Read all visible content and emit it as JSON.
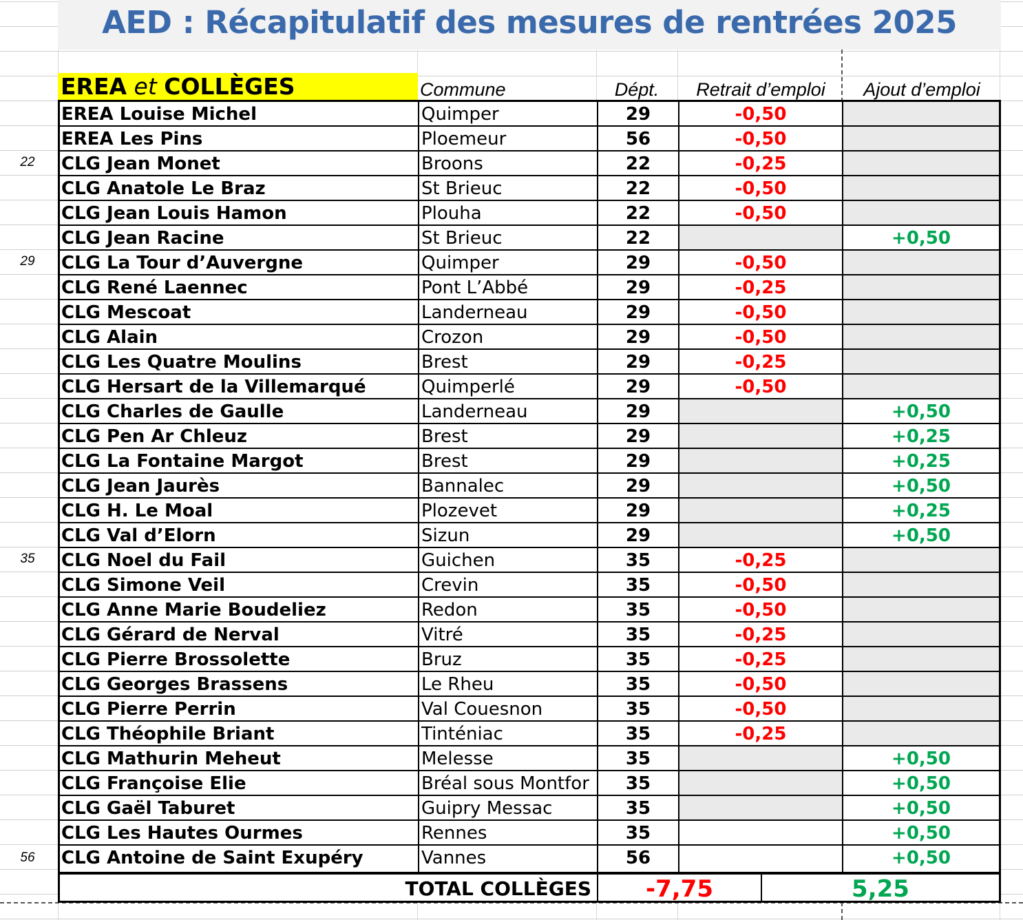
{
  "title": "AED : Récapitulatif des mesures de rentrées 2025",
  "header": {
    "group_bold1": "EREA",
    "group_italic": " et ",
    "group_bold2": "COLLÈGES",
    "commune": "Commune",
    "dept": "Dépt.",
    "retrait": "Retrait d’emploi",
    "ajout": "Ajout d’emploi"
  },
  "dept_markers": [
    "22",
    "29",
    "35",
    "56"
  ],
  "rows": [
    {
      "name": "EREA Louise Michel",
      "commune": "Quimper",
      "dept": "29",
      "retrait": "-0,50",
      "ajout": ""
    },
    {
      "name": "EREA Les Pins",
      "commune": "Ploemeur",
      "dept": "56",
      "retrait": "-0,50",
      "ajout": ""
    },
    {
      "name": "CLG Jean Monet",
      "commune": "Broons",
      "dept": "22",
      "retrait": "-0,25",
      "ajout": ""
    },
    {
      "name": "CLG Anatole Le Braz",
      "commune": "St Brieuc",
      "dept": "22",
      "retrait": "-0,50",
      "ajout": ""
    },
    {
      "name": "CLG Jean Louis Hamon",
      "commune": "Plouha",
      "dept": "22",
      "retrait": "-0,50",
      "ajout": ""
    },
    {
      "name": "CLG Jean Racine",
      "commune": "St Brieuc",
      "dept": "22",
      "retrait": "",
      "ajout": "+0,50"
    },
    {
      "name": "CLG  La Tour d’Auvergne",
      "commune": "Quimper",
      "dept": "29",
      "retrait": "-0,50",
      "ajout": ""
    },
    {
      "name": "CLG René Laennec",
      "commune": "Pont L’Abbé",
      "dept": "29",
      "retrait": "-0,25",
      "ajout": ""
    },
    {
      "name": "CLG Mescoat",
      "commune": "Landerneau",
      "dept": "29",
      "retrait": "-0,50",
      "ajout": ""
    },
    {
      "name": "CLG Alain",
      "commune": "Crozon",
      "dept": "29",
      "retrait": "-0,50",
      "ajout": ""
    },
    {
      "name": "CLG Les Quatre Moulins",
      "commune": "Brest",
      "dept": "29",
      "retrait": "-0,25",
      "ajout": ""
    },
    {
      "name": "CLG Hersart de la Villemarqué",
      "commune": "Quimperlé",
      "dept": "29",
      "retrait": "-0,50",
      "ajout": ""
    },
    {
      "name": "CLG Charles de Gaulle",
      "commune": "Landerneau",
      "dept": "29",
      "retrait": "",
      "ajout": "+0,50"
    },
    {
      "name": "CLG Pen Ar Chleuz",
      "commune": "Brest",
      "dept": "29",
      "retrait": "",
      "ajout": "+0,25"
    },
    {
      "name": "CLG La Fontaine Margot",
      "commune": "Brest",
      "dept": "29",
      "retrait": "",
      "ajout": "+0,25"
    },
    {
      "name": "CLG Jean Jaurès",
      "commune": "Bannalec",
      "dept": "29",
      "retrait": "",
      "ajout": "+0,50"
    },
    {
      "name": "CLG H. Le Moal",
      "commune": "Plozevet",
      "dept": "29",
      "retrait": "",
      "ajout": "+0,25"
    },
    {
      "name": "CLG Val d’Elorn",
      "commune": "Sizun",
      "dept": "29",
      "retrait": "",
      "ajout": "+0,50"
    },
    {
      "name": "CLG Noel du Fail",
      "commune": "Guichen",
      "dept": "35",
      "retrait": "-0,25",
      "ajout": ""
    },
    {
      "name": "CLG Simone Veil",
      "commune": "Crevin",
      "dept": "35",
      "retrait": "-0,50",
      "ajout": ""
    },
    {
      "name": "CLG Anne Marie Boudeliez",
      "commune": "Redon",
      "dept": "35",
      "retrait": "-0,50",
      "ajout": ""
    },
    {
      "name": "CLG Gérard de Nerval",
      "commune": "Vitré",
      "dept": "35",
      "retrait": "-0,25",
      "ajout": ""
    },
    {
      "name": "CLG Pierre Brossolette",
      "commune": "Bruz",
      "dept": "35",
      "retrait": "-0,25",
      "ajout": ""
    },
    {
      "name": "CLG Georges Brassens",
      "commune": "Le Rheu",
      "dept": "35",
      "retrait": "-0,50",
      "ajout": ""
    },
    {
      "name": "CLG Pierre Perrin",
      "commune": "Val Couesnon",
      "dept": "35",
      "retrait": "-0,50",
      "ajout": ""
    },
    {
      "name": "CLG  Théophile Briant",
      "commune": "Tinténiac",
      "dept": "35",
      "retrait": "-0,25",
      "ajout": ""
    },
    {
      "name": "CLG Mathurin Meheut",
      "commune": "Melesse",
      "dept": "35",
      "retrait": "",
      "ajout": "+0,50"
    },
    {
      "name": "CLG Françoise Elie",
      "commune": "Bréal sous Montfor",
      "dept": "35",
      "retrait": "",
      "ajout": "+0,50"
    },
    {
      "name": "CLG Gaël Taburet",
      "commune": "Guipry Messac",
      "dept": "35",
      "retrait": "",
      "ajout": "+0,50"
    },
    {
      "name": "CLG Les Hautes Ourmes",
      "commune": "Rennes",
      "dept": "35",
      "retrait": "",
      "ajout": "+0,50"
    },
    {
      "name": "CLG Antoine de Saint Exupéry",
      "commune": "Vannes",
      "dept": "56",
      "retrait": "",
      "ajout": "+0,50"
    }
  ],
  "total": {
    "label": "TOTAL COLLÈGES",
    "retrait": "-7,75",
    "ajout": "5,25"
  },
  "colors": {
    "title": "#3b6aac",
    "header_highlight": "#ffff00",
    "retrait": "#ff0000",
    "ajout": "#00a651",
    "shaded_cell": "#eaeaea"
  }
}
